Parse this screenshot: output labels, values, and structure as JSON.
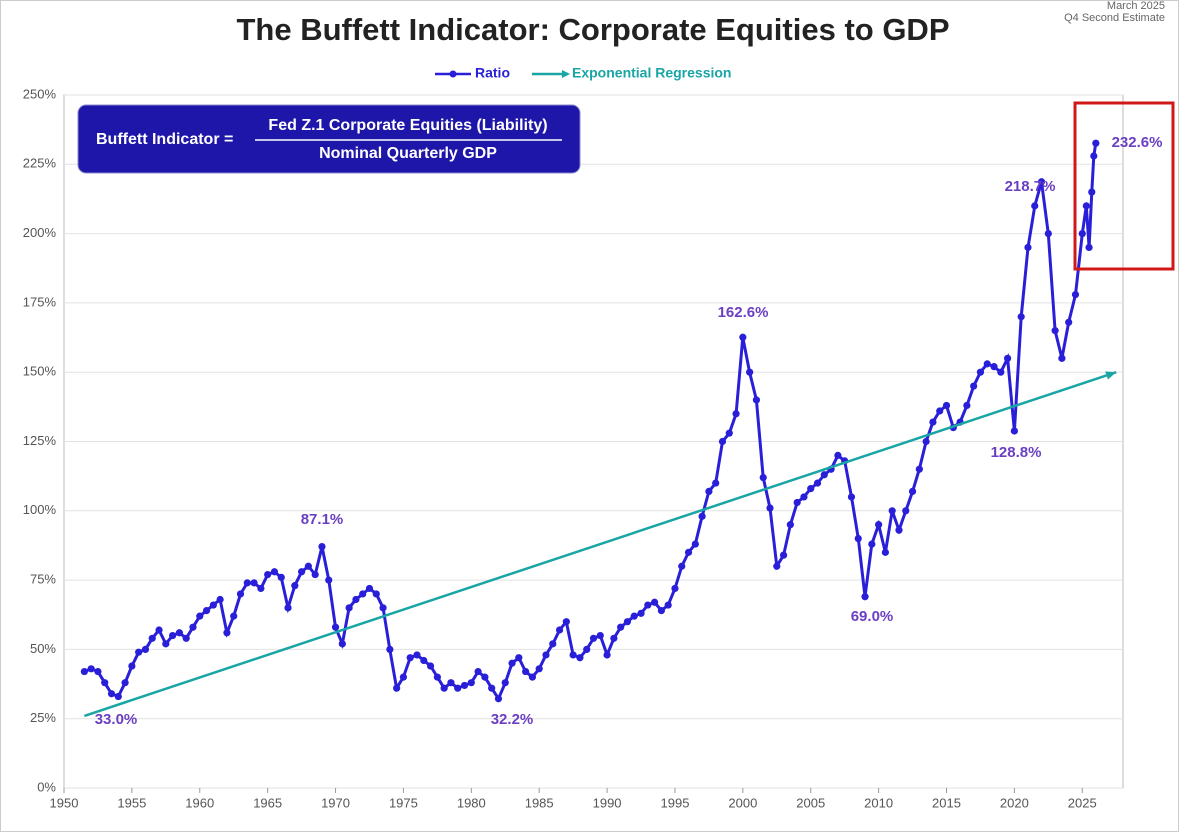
{
  "chart_data": {
    "type": "line",
    "title": "The Buffett Indicator: Corporate Equities to GDP",
    "date_note": [
      "March 2025",
      "Q4 Second Estimate"
    ],
    "formula": {
      "left": "Buffett Indicator =",
      "numerator": "Fed Z.1 Corporate Equities (Liability)",
      "denominator": "Nominal Quarterly GDP"
    },
    "annotations": [
      "33.0%",
      "32.2%",
      "87.1%",
      "162.6%",
      "69.0%",
      "128.8%",
      "218.7%",
      "232.6%"
    ],
    "legend": "top",
    "grid": true,
    "xlim": [
      1950,
      2028
    ],
    "xticks": [
      1950,
      1955,
      1960,
      1965,
      1970,
      1975,
      1980,
      1985,
      1990,
      1995,
      2000,
      2005,
      2010,
      2015,
      2020,
      2025
    ],
    "ylim": [
      0,
      250
    ],
    "yticks": [
      {
        "value": 0,
        "label": "0%"
      },
      {
        "value": 25,
        "label": "25%"
      },
      {
        "value": 50,
        "label": "50%"
      },
      {
        "value": 75,
        "label": "75%"
      },
      {
        "value": 100,
        "label": "100%"
      },
      {
        "value": 125,
        "label": "125%"
      },
      {
        "value": 150,
        "label": "150%"
      },
      {
        "value": 175,
        "label": "175%"
      },
      {
        "value": 200,
        "label": "200%"
      },
      {
        "value": 225,
        "label": "225%"
      },
      {
        "value": 250,
        "label": "250%"
      }
    ],
    "series": [
      {
        "name": "Ratio",
        "color": "#2a1fd8",
        "markers": true,
        "x": [
          1951.5,
          1952,
          1952.5,
          1953,
          1953.5,
          1954,
          1954.5,
          1955,
          1955.5,
          1956,
          1956.5,
          1957,
          1957.5,
          1958,
          1958.5,
          1959,
          1959.5,
          1960,
          1960.5,
          1961,
          1961.5,
          1962,
          1962.5,
          1963,
          1963.5,
          1964,
          1964.5,
          1965,
          1965.5,
          1966,
          1966.5,
          1967,
          1967.5,
          1968,
          1968.5,
          1969,
          1969.5,
          1970,
          1970.5,
          1971,
          1971.5,
          1972,
          1972.5,
          1973,
          1973.5,
          1974,
          1974.5,
          1975,
          1975.5,
          1976,
          1976.5,
          1977,
          1977.5,
          1978,
          1978.5,
          1979,
          1979.5,
          1980,
          1980.5,
          1981,
          1981.5,
          1982,
          1982.5,
          1983,
          1983.5,
          1984,
          1984.5,
          1985,
          1985.5,
          1986,
          1986.5,
          1987,
          1987.5,
          1988,
          1988.5,
          1989,
          1989.5,
          1990,
          1990.5,
          1991,
          1991.5,
          1992,
          1992.5,
          1993,
          1993.5,
          1994,
          1994.5,
          1995,
          1995.5,
          1996,
          1996.5,
          1997,
          1997.5,
          1998,
          1998.5,
          1999,
          1999.5,
          2000,
          2000.5,
          2001,
          2001.5,
          2002,
          2002.5,
          2003,
          2003.5,
          2004,
          2004.5,
          2005,
          2005.5,
          2006,
          2006.5,
          2007,
          2007.5,
          2008,
          2008.5,
          2009,
          2009.5,
          2010,
          2010.5,
          2011,
          2011.5,
          2012,
          2012.5,
          2013,
          2013.5,
          2014,
          2014.5,
          2015,
          2015.5,
          2016,
          2016.5,
          2017,
          2017.5,
          2018,
          2018.5,
          2019,
          2019.5,
          2020,
          2020.5,
          2021,
          2021.5,
          2022,
          2022.5,
          2023,
          2023.5,
          2024,
          2024.5,
          2025,
          2025.3,
          2025.5,
          2025.7,
          2025.85,
          2026
        ],
        "values": [
          42,
          43,
          42,
          38,
          34,
          33,
          38,
          44,
          49,
          50,
          54,
          57,
          52,
          55,
          56,
          54,
          58,
          62,
          64,
          66,
          68,
          56,
          62,
          70,
          74,
          74,
          72,
          77,
          78,
          76,
          65,
          73,
          78,
          80,
          77,
          87.1,
          75,
          58,
          52,
          65,
          68,
          70,
          72,
          70,
          65,
          50,
          36,
          40,
          47,
          48,
          46,
          44,
          40,
          36,
          38,
          36,
          37,
          38,
          42,
          40,
          36,
          32.2,
          38,
          45,
          47,
          42,
          40,
          43,
          48,
          52,
          57,
          60,
          48,
          47,
          50,
          54,
          55,
          48,
          54,
          58,
          60,
          62,
          63,
          66,
          67,
          64,
          66,
          72,
          80,
          85,
          88,
          98,
          107,
          110,
          125,
          128,
          135,
          162.6,
          150,
          140,
          112,
          101,
          80,
          84,
          95,
          103,
          105,
          108,
          110,
          113,
          115,
          120,
          118,
          105,
          90,
          69,
          88,
          95,
          85,
          100,
          93,
          100,
          107,
          115,
          125,
          132,
          136,
          138,
          130,
          132,
          138,
          145,
          150,
          153,
          152,
          150,
          155,
          128.8,
          170,
          195,
          210,
          218.7,
          200,
          165,
          155,
          168,
          178,
          200,
          210,
          195,
          215,
          228,
          232.6
        ]
      },
      {
        "name": "Exponential Regression",
        "color": "#1aa5a5",
        "markers": false,
        "x": [
          1951.5,
          2027.5
        ],
        "values": [
          26,
          150
        ]
      }
    ]
  }
}
